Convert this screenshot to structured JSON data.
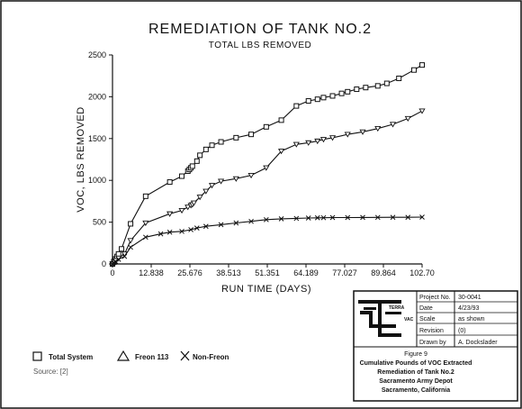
{
  "chart_data": {
    "type": "line",
    "title": "REMEDIATION OF TANK NO.2",
    "subtitle": "TOTAL LBS REMOVED",
    "xlabel": "RUN TIME (DAYS)",
    "ylabel": "VOC, LBS REMOVED",
    "xlim": [
      0,
      102.7
    ],
    "ylim": [
      0,
      2500
    ],
    "x_ticks": [
      0,
      12.838,
      25.676,
      38.513,
      51.351,
      64.189,
      77.027,
      89.864,
      102.7
    ],
    "x_tick_labels": [
      "0",
      "12.838",
      "25.676",
      "38.513",
      "51.351",
      "64.189",
      "77.027",
      "89.864",
      "102.70"
    ],
    "y_ticks": [
      0,
      500,
      1000,
      1500,
      2000,
      2500
    ],
    "y_tick_labels": [
      "0",
      "500",
      "1000",
      "1500",
      "2000",
      "2500"
    ],
    "grid": false,
    "legend_position": "bottom-left",
    "series": [
      {
        "name": "Total System",
        "marker": "square",
        "color": "#111111",
        "points": [
          [
            0,
            0
          ],
          [
            0.5,
            30
          ],
          [
            1,
            60
          ],
          [
            1.5,
            90
          ],
          [
            2,
            120
          ],
          [
            3,
            180
          ],
          [
            6,
            480
          ],
          [
            11,
            810
          ],
          [
            19,
            980
          ],
          [
            23,
            1050
          ],
          [
            25,
            1110
          ],
          [
            25.5,
            1130
          ],
          [
            26,
            1150
          ],
          [
            26.5,
            1170
          ],
          [
            28,
            1230
          ],
          [
            29,
            1300
          ],
          [
            31,
            1370
          ],
          [
            33,
            1420
          ],
          [
            36,
            1460
          ],
          [
            41,
            1510
          ],
          [
            46,
            1550
          ],
          [
            51,
            1640
          ],
          [
            56,
            1720
          ],
          [
            61,
            1890
          ],
          [
            65,
            1950
          ],
          [
            68,
            1970
          ],
          [
            70,
            1990
          ],
          [
            73,
            2010
          ],
          [
            76,
            2040
          ],
          [
            78,
            2060
          ],
          [
            81,
            2090
          ],
          [
            84,
            2110
          ],
          [
            88,
            2130
          ],
          [
            91,
            2160
          ],
          [
            95,
            2220
          ],
          [
            100,
            2320
          ],
          [
            102.7,
            2380
          ]
        ]
      },
      {
        "name": "Freon 113",
        "marker": "triangle",
        "color": "#111111",
        "points": [
          [
            0,
            0
          ],
          [
            0.5,
            20
          ],
          [
            1,
            40
          ],
          [
            2,
            70
          ],
          [
            4,
            120
          ],
          [
            6,
            280
          ],
          [
            11,
            490
          ],
          [
            19,
            600
          ],
          [
            23,
            640
          ],
          [
            25,
            680
          ],
          [
            26,
            700
          ],
          [
            26.5,
            710
          ],
          [
            27,
            730
          ],
          [
            29,
            800
          ],
          [
            31,
            870
          ],
          [
            33,
            940
          ],
          [
            36,
            990
          ],
          [
            41,
            1020
          ],
          [
            46,
            1060
          ],
          [
            51,
            1150
          ],
          [
            56,
            1350
          ],
          [
            61,
            1430
          ],
          [
            65,
            1450
          ],
          [
            68,
            1470
          ],
          [
            70,
            1490
          ],
          [
            73,
            1510
          ],
          [
            78,
            1550
          ],
          [
            83,
            1580
          ],
          [
            88,
            1620
          ],
          [
            93,
            1670
          ],
          [
            98,
            1740
          ],
          [
            102.7,
            1830
          ]
        ]
      },
      {
        "name": "Non-Freon",
        "marker": "x",
        "color": "#111111",
        "points": [
          [
            0,
            0
          ],
          [
            0.5,
            15
          ],
          [
            1,
            30
          ],
          [
            2,
            55
          ],
          [
            4,
            90
          ],
          [
            6,
            200
          ],
          [
            11,
            320
          ],
          [
            16,
            360
          ],
          [
            19,
            380
          ],
          [
            23,
            390
          ],
          [
            26,
            410
          ],
          [
            28,
            430
          ],
          [
            31,
            450
          ],
          [
            36,
            470
          ],
          [
            41,
            490
          ],
          [
            46,
            510
          ],
          [
            51,
            530
          ],
          [
            56,
            540
          ],
          [
            61,
            545
          ],
          [
            65,
            550
          ],
          [
            68,
            552
          ],
          [
            70,
            553
          ],
          [
            73,
            555
          ],
          [
            78,
            555
          ],
          [
            83,
            556
          ],
          [
            88,
            557
          ],
          [
            93,
            558
          ],
          [
            98,
            558
          ],
          [
            102.7,
            560
          ]
        ]
      }
    ]
  },
  "legend": {
    "items": [
      {
        "label": "Total System",
        "icon": "square-marker-icon"
      },
      {
        "label": "Freon 113",
        "icon": "triangle-marker-icon"
      },
      {
        "label": "Non-Freon",
        "icon": "x-marker-icon"
      }
    ]
  },
  "footnote": "Source: [2]",
  "title_block": {
    "logo_text": "TERRA",
    "logo_subtext": "VAC",
    "fields": [
      {
        "label": "Project No.",
        "value": "30-0041"
      },
      {
        "label": "Date",
        "value": "4/23/93"
      },
      {
        "label": "Scale",
        "value": "as shown"
      },
      {
        "label": "Revision",
        "value": "(0)"
      },
      {
        "label": "Drawn by",
        "value": "A. Dockslader"
      }
    ],
    "figure_label": "Figure 9",
    "caption_lines": [
      "Cumulative Pounds of VOC Extracted",
      "Remediation of Tank No.2",
      "Sacramento Army Depot",
      "Sacramento, California"
    ]
  }
}
